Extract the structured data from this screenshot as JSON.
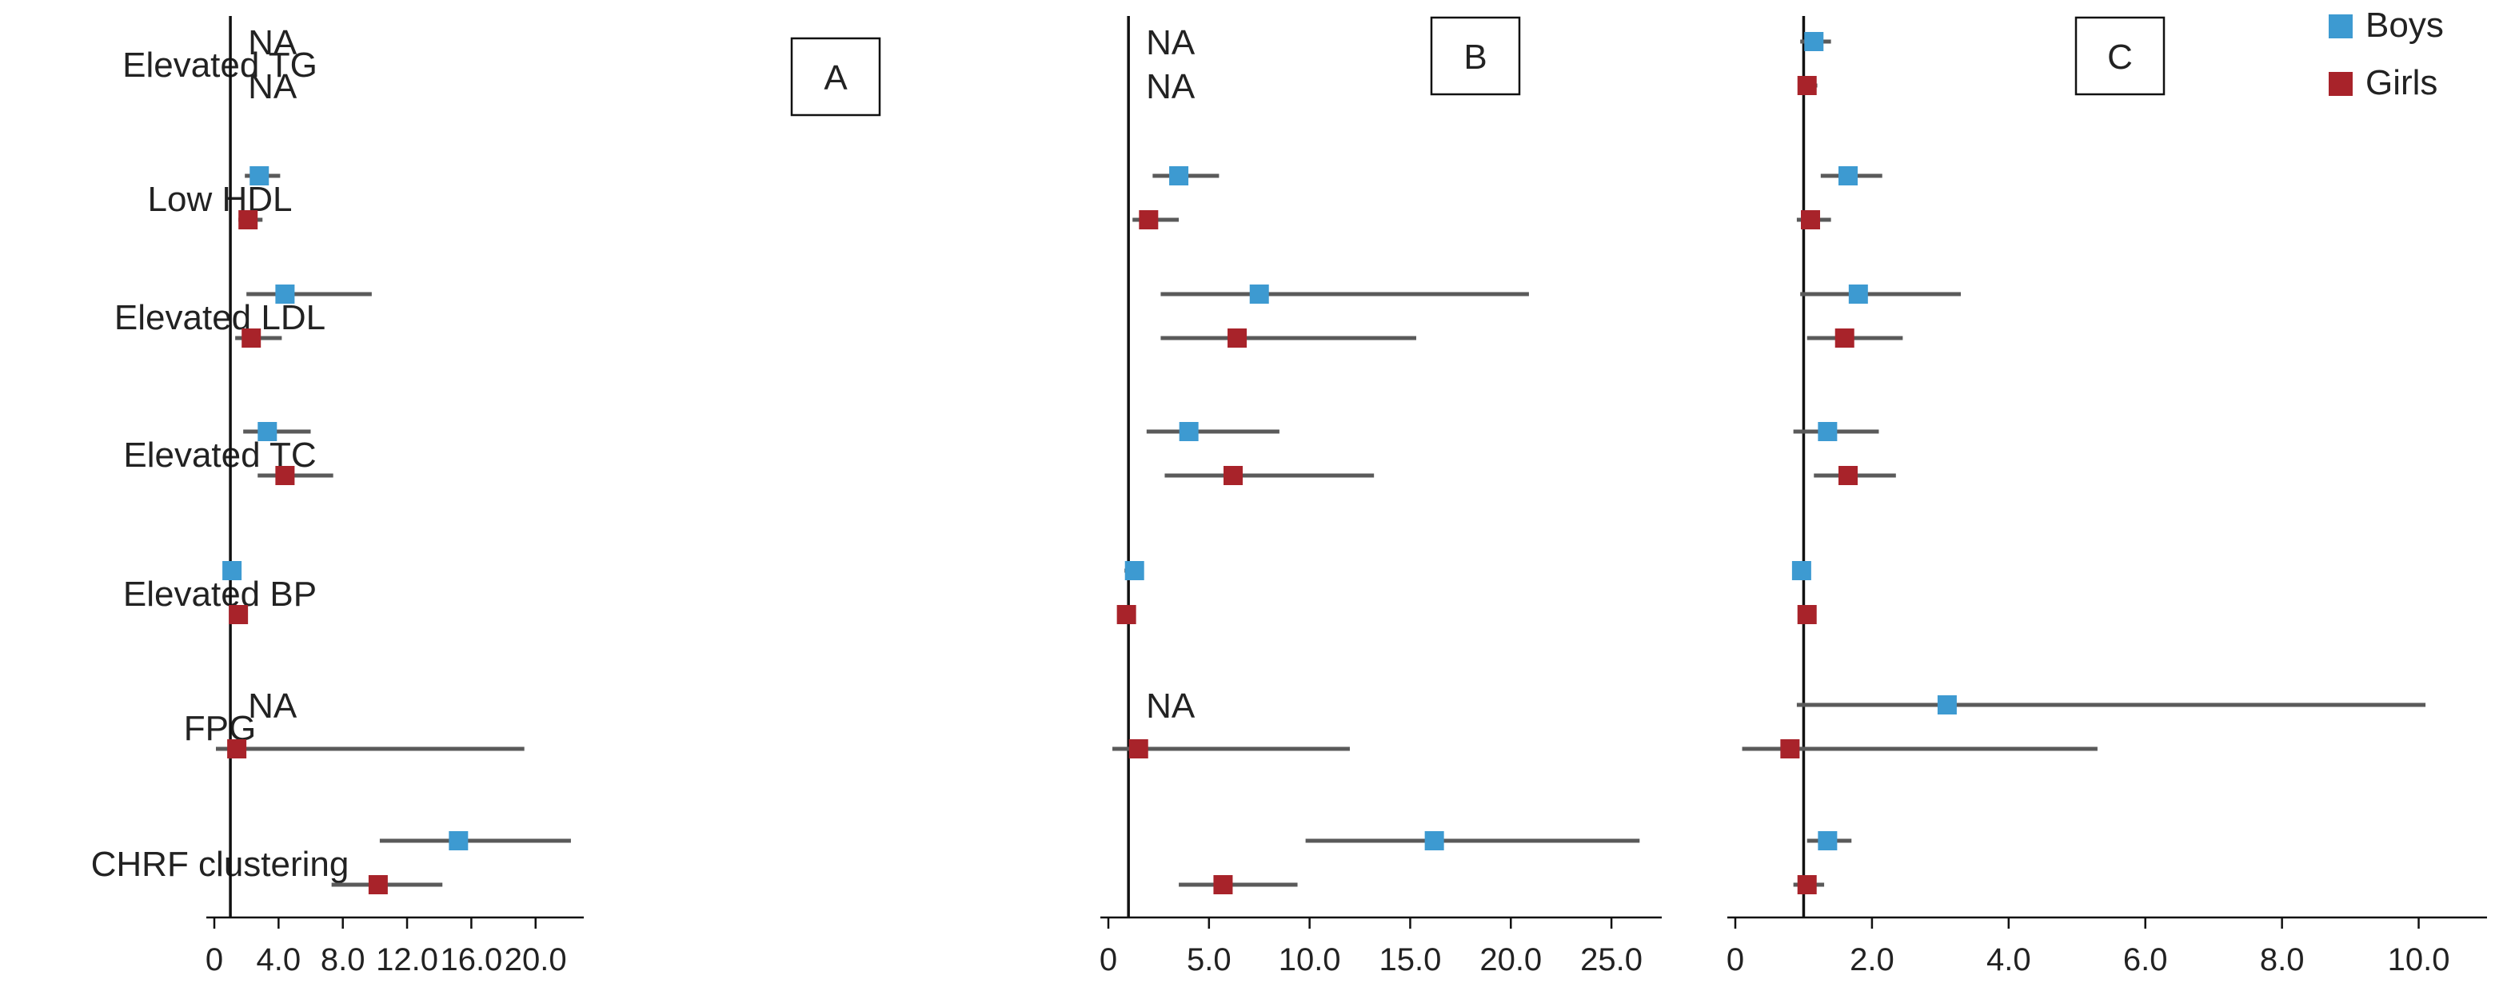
{
  "chart_data": {
    "type": "forest",
    "rows": [
      "Elevated TG",
      "Low HDL",
      "Elevated LDL",
      "Elevated TC",
      "Elevated BP",
      "FPG",
      "CHRF clustering"
    ],
    "legend": [
      {
        "name": "Boys",
        "color": "#3d9ad1"
      },
      {
        "name": "Girls",
        "color": "#a8232a"
      }
    ],
    "reference_line": 1,
    "panels": [
      {
        "label": "A",
        "xlim": [
          0,
          23
        ],
        "xticks": [
          "0",
          "4.0",
          "8.0",
          "12.0",
          "16.0",
          "20.0"
        ],
        "xtick_values": [
          0,
          4,
          8,
          12,
          16,
          20
        ],
        "boys": [
          {
            "est": null,
            "lo": null,
            "hi": null,
            "na": "NA"
          },
          {
            "est": 2.8,
            "lo": 1.9,
            "hi": 4.1
          },
          {
            "est": 4.4,
            "lo": 2.0,
            "hi": 9.8
          },
          {
            "est": 3.3,
            "lo": 1.8,
            "hi": 6.0
          },
          {
            "est": 1.1,
            "lo": 0.8,
            "hi": 1.4
          },
          {
            "est": null,
            "lo": null,
            "hi": null,
            "na": "NA"
          },
          {
            "est": 15.2,
            "lo": 10.3,
            "hi": 22.2
          }
        ],
        "girls": [
          {
            "est": null,
            "lo": null,
            "hi": null,
            "na": "NA"
          },
          {
            "est": 2.1,
            "lo": 1.5,
            "hi": 3.0
          },
          {
            "est": 2.3,
            "lo": 1.3,
            "hi": 4.2
          },
          {
            "est": 4.4,
            "lo": 2.7,
            "hi": 7.4
          },
          {
            "est": 1.5,
            "lo": 1.2,
            "hi": 1.9
          },
          {
            "est": 1.4,
            "lo": 0.1,
            "hi": 19.3
          },
          {
            "est": 10.2,
            "lo": 7.3,
            "hi": 14.2
          }
        ]
      },
      {
        "label": "B",
        "xlim": [
          0,
          27.5
        ],
        "xticks": [
          "0",
          "5.0",
          "10.0",
          "15.0",
          "20.0",
          "25.0"
        ],
        "xtick_values": [
          0,
          5,
          10,
          15,
          20,
          25
        ],
        "boys": [
          {
            "est": null,
            "lo": null,
            "hi": null,
            "na": "NA"
          },
          {
            "est": 3.5,
            "lo": 2.2,
            "hi": 5.5
          },
          {
            "est": 7.5,
            "lo": 2.6,
            "hi": 20.9
          },
          {
            "est": 4.0,
            "lo": 1.9,
            "hi": 8.5
          },
          {
            "est": 1.3,
            "lo": 0.8,
            "hi": 1.6
          },
          {
            "est": null,
            "lo": null,
            "hi": null,
            "na": "NA"
          },
          {
            "est": 16.2,
            "lo": 9.8,
            "hi": 26.4
          }
        ],
        "girls": [
          {
            "est": null,
            "lo": null,
            "hi": null,
            "na": "NA"
          },
          {
            "est": 2.0,
            "lo": 1.2,
            "hi": 3.5
          },
          {
            "est": 6.4,
            "lo": 2.6,
            "hi": 15.3
          },
          {
            "est": 6.2,
            "lo": 2.8,
            "hi": 13.2
          },
          {
            "est": 0.9,
            "lo": 0.7,
            "hi": 1.2
          },
          {
            "est": 1.5,
            "lo": 0.2,
            "hi": 12.0
          },
          {
            "est": 5.7,
            "lo": 3.5,
            "hi": 9.4
          }
        ]
      },
      {
        "label": "C",
        "xlim": [
          0,
          11
        ],
        "xticks": [
          "0",
          "2.0",
          "4.0",
          "6.0",
          "8.0",
          "10.0"
        ],
        "xtick_values": [
          0,
          2,
          4,
          6,
          8,
          10
        ],
        "boys": [
          {
            "est": 1.15,
            "lo": 0.95,
            "hi": 1.4
          },
          {
            "est": 1.65,
            "lo": 1.25,
            "hi": 2.15
          },
          {
            "est": 1.8,
            "lo": 0.95,
            "hi": 3.3
          },
          {
            "est": 1.35,
            "lo": 0.85,
            "hi": 2.1
          },
          {
            "est": 0.97,
            "lo": 0.9,
            "hi": 1.05
          },
          {
            "est": 3.1,
            "lo": 0.9,
            "hi": 10.1
          },
          {
            "est": 1.35,
            "lo": 1.05,
            "hi": 1.7
          }
        ],
        "girls": [
          {
            "est": 1.05,
            "lo": 0.95,
            "hi": 1.2
          },
          {
            "est": 1.1,
            "lo": 0.9,
            "hi": 1.4
          },
          {
            "est": 1.6,
            "lo": 1.05,
            "hi": 2.45
          },
          {
            "est": 1.65,
            "lo": 1.15,
            "hi": 2.35
          },
          {
            "est": 1.05,
            "lo": 0.98,
            "hi": 1.12
          },
          {
            "est": 0.8,
            "lo": 0.1,
            "hi": 5.3
          },
          {
            "est": 1.05,
            "lo": 0.85,
            "hi": 1.3
          }
        ]
      }
    ]
  }
}
